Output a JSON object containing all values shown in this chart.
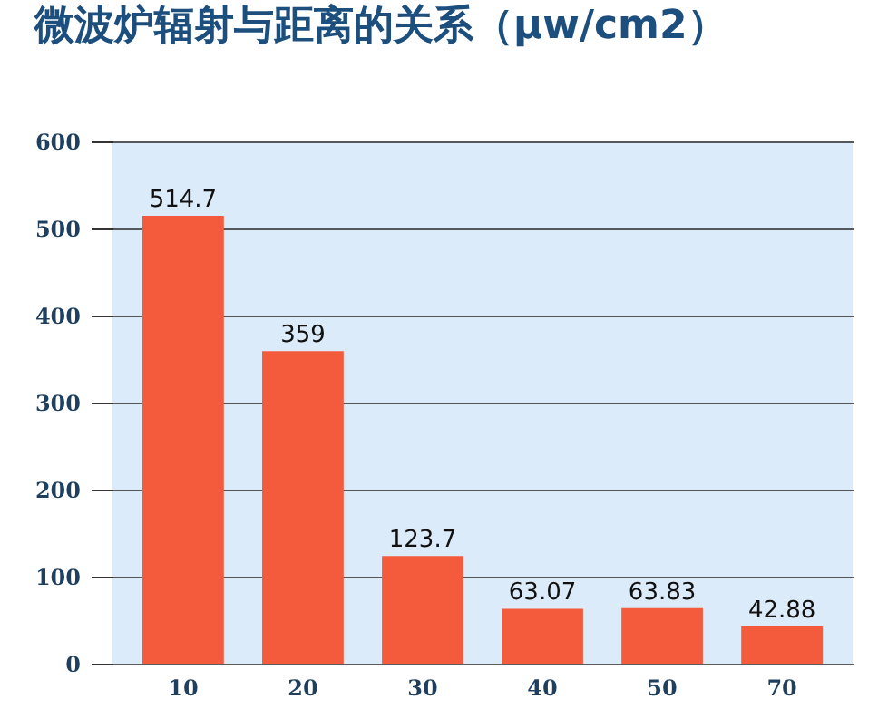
{
  "chart_data": {
    "type": "bar",
    "title": "微波炉辐射与距离的关系（μw/cm2）",
    "categories": [
      "10",
      "20",
      "30",
      "40",
      "50",
      "70"
    ],
    "values": [
      514.7,
      359,
      123.7,
      63.07,
      63.83,
      42.88
    ],
    "color": "#f45b3c",
    "ylim": [
      0,
      600
    ],
    "yticks": [
      0,
      100,
      200,
      300,
      400,
      500,
      600
    ],
    "grid": "y",
    "data_labels": true
  }
}
